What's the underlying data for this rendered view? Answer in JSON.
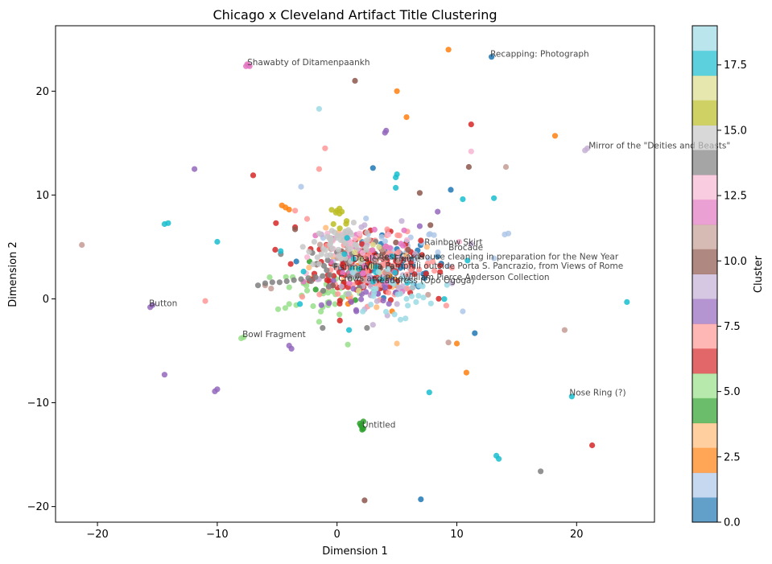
{
  "chart_data": {
    "type": "scatter",
    "title": "Chicago x Cleveland Artifact Title Clustering",
    "xlabel": "Dimension 1",
    "ylabel": "Dimension 2",
    "xlim": [
      -23.5,
      26.5
    ],
    "ylim": [
      -21.5,
      26.3
    ],
    "xticks": [
      -20,
      -10,
      0,
      10,
      20
    ],
    "yticks": [
      -20,
      -10,
      0,
      10,
      20
    ],
    "grid": false,
    "colorbar": {
      "label": "Cluster",
      "range": [
        0,
        19
      ],
      "ticks": [
        0.0,
        2.5,
        5.0,
        7.5,
        10.0,
        12.5,
        15.0,
        17.5
      ],
      "tick_labels": [
        "0.0",
        "2.5",
        "5.0",
        "7.5",
        "10.0",
        "12.5",
        "15.0",
        "17.5"
      ],
      "colors": [
        "#1f77b4",
        "#aec7e8",
        "#ff7f0e",
        "#ffbb78",
        "#2ca02c",
        "#98df8a",
        "#d62728",
        "#ff9896",
        "#9467bd",
        "#c5b0d5",
        "#8c564b",
        "#c49c94",
        "#e377c2",
        "#f7b6d2",
        "#7f7f7f",
        "#c7c7c7",
        "#bcbd22",
        "#dbdb8d",
        "#17becf",
        "#9edae5"
      ]
    },
    "annotations": [
      {
        "text": "Shawabty of Ditamenpaankh",
        "x": -7.5,
        "y": 22.5
      },
      {
        "text": "Recapping: Photograph",
        "x": 12.8,
        "y": 23.3
      },
      {
        "text": "Mirror of the \"Deities and Beasts\"",
        "x": 21.0,
        "y": 14.5
      },
      {
        "text": "Rainbow Skirt",
        "x": 7.3,
        "y": 5.2
      },
      {
        "text": "Brocade",
        "x": 9.3,
        "y": 4.7
      },
      {
        "text": "Chest Cards",
        "x": 3.0,
        "y": 3.8
      },
      {
        "text": "Dealers",
        "x": 1.3,
        "y": 3.6
      },
      {
        "text": "Figure",
        "x": 4.8,
        "y": 3.6
      },
      {
        "text": "House cleaning in preparation for the New Year",
        "x": 6.8,
        "y": 3.8
      },
      {
        "text": "Fishman",
        "x": -0.3,
        "y": 2.8
      },
      {
        "text": "Villa Pamphili outside Porta S. Pancrazio, from Views of Rome",
        "x": 2.3,
        "y": 2.9
      },
      {
        "text": "Crows and Pine",
        "x": 0.1,
        "y": 1.7
      },
      {
        "text": "William Pierce Anderson Collection",
        "x": 5.5,
        "y": 1.8
      },
      {
        "text": "Headdress (Opo Ogoga)",
        "x": 3.0,
        "y": 1.5
      },
      {
        "text": "Button",
        "x": -15.7,
        "y": -0.7
      },
      {
        "text": "Bowl Fragment",
        "x": -7.9,
        "y": -3.7
      },
      {
        "text": "Nose Ring (?)",
        "x": 19.4,
        "y": -9.3
      },
      {
        "text": "Untitled",
        "x": 2.1,
        "y": -12.4
      }
    ],
    "series": [
      {
        "cluster": 0,
        "points": [
          [
            12.9,
            23.3
          ],
          [
            3.0,
            12.6
          ],
          [
            9.5,
            10.5
          ],
          [
            11.5,
            -3.3
          ],
          [
            7.0,
            -19.3
          ],
          [
            5.0,
            4.8
          ],
          [
            6.2,
            3.8
          ],
          [
            7.3,
            2.0
          ],
          [
            6.4,
            1.4
          ],
          [
            4.0,
            4.6
          ],
          [
            1.9,
            4.2
          ],
          [
            8.7,
            3.4
          ],
          [
            5.8,
            5.3
          ],
          [
            3.3,
            2.8
          ],
          [
            -3.4,
            3.6
          ],
          [
            4.9,
            0.6
          ],
          [
            7.2,
            2.4
          ],
          [
            8.4,
            4.1
          ]
        ],
        "n_random": 40,
        "center": [
          4.5,
          3.5
        ],
        "spread": [
          2.0,
          1.3
        ]
      },
      {
        "cluster": 1,
        "points": [
          [
            14.3,
            6.3
          ],
          [
            14.0,
            6.2
          ],
          [
            10.5,
            -1.2
          ],
          [
            13.1,
            3.9
          ],
          [
            -3.0,
            10.8
          ],
          [
            7.1,
            5.4
          ],
          [
            5.9,
            5.1
          ],
          [
            4.2,
            2.3
          ]
        ],
        "n_random": 40,
        "center": [
          4.0,
          4.0
        ],
        "spread": [
          2.5,
          1.5
        ]
      },
      {
        "cluster": 2,
        "points": [
          [
            9.3,
            24.0
          ],
          [
            5.0,
            20.0
          ],
          [
            5.8,
            17.5
          ],
          [
            18.2,
            15.7
          ],
          [
            -4.6,
            9.0
          ],
          [
            -4.3,
            8.8
          ],
          [
            -4.0,
            8.6
          ],
          [
            10.8,
            -7.1
          ],
          [
            10.0,
            -4.3
          ],
          [
            4.6,
            -1.2
          ],
          [
            3.2,
            3.8
          ]
        ],
        "n_random": 8,
        "center": [
          2.0,
          2.0
        ],
        "spread": [
          2.5,
          2.0
        ]
      },
      {
        "cluster": 3,
        "points": [
          [
            5.0,
            -4.3
          ],
          [
            7.5,
            5.0
          ],
          [
            3.3,
            -0.8
          ],
          [
            1.3,
            5.3
          ],
          [
            -2.1,
            2.0
          ]
        ],
        "n_random": 12,
        "center": [
          2.0,
          2.5
        ],
        "spread": [
          2.5,
          2.0
        ]
      },
      {
        "cluster": 4,
        "points": [
          [
            2.1,
            -12.4
          ],
          [
            2.1,
            -12.6
          ],
          [
            2.0,
            -12.2
          ],
          [
            2.2,
            -12.5
          ],
          [
            1.9,
            -12.0
          ],
          [
            2.2,
            -11.8
          ],
          [
            -2.3,
            3.6
          ],
          [
            1.2,
            2.6
          ]
        ],
        "n_random": 6,
        "center": [
          0.5,
          2.0
        ],
        "spread": [
          2.0,
          1.5
        ]
      },
      {
        "cluster": 5,
        "points": [
          [
            -8.0,
            -3.8
          ],
          [
            -7.8,
            -3.7
          ],
          [
            -1.5,
            -2.2
          ],
          [
            0.9,
            -4.4
          ],
          [
            -4.0,
            -0.5
          ],
          [
            -3.4,
            -0.6
          ],
          [
            -2.5,
            0.8
          ],
          [
            -3.7,
            2.1
          ],
          [
            -2.8,
            1.5
          ],
          [
            1.0,
            0.5
          ],
          [
            -1.2,
            -0.8
          ],
          [
            0.2,
            -1.5
          ]
        ],
        "n_random": 30,
        "center": [
          -1.5,
          0.8
        ],
        "spread": [
          1.8,
          1.2
        ]
      },
      {
        "cluster": 6,
        "points": [
          [
            11.2,
            16.8
          ],
          [
            -7.0,
            11.9
          ],
          [
            -5.1,
            7.3
          ],
          [
            -3.5,
            6.9
          ],
          [
            21.3,
            -14.1
          ],
          [
            -2.2,
            4.8
          ],
          [
            8.6,
            3.2
          ],
          [
            2.8,
            6.6
          ]
        ],
        "n_random": 130,
        "center": [
          2.5,
          3.0
        ],
        "spread": [
          2.2,
          1.5
        ]
      },
      {
        "cluster": 7,
        "points": [
          [
            -11.0,
            -0.2
          ],
          [
            -1.0,
            14.5
          ],
          [
            -1.5,
            12.5
          ],
          [
            -3.5,
            8.5
          ],
          [
            -2.5,
            7.7
          ],
          [
            -2.9,
            0.2
          ],
          [
            -0.7,
            1.1
          ],
          [
            5.2,
            6.1
          ],
          [
            9.6,
            3.0
          ]
        ],
        "n_random": 70,
        "center": [
          3.5,
          3.2
        ],
        "spread": [
          2.5,
          1.5
        ]
      },
      {
        "cluster": 8,
        "points": [
          [
            -15.6,
            -0.8
          ],
          [
            -15.4,
            -0.6
          ],
          [
            -14.4,
            -7.3
          ],
          [
            -10.2,
            -8.9
          ],
          [
            -10.0,
            -8.7
          ],
          [
            -11.9,
            12.5
          ],
          [
            4.1,
            16.2
          ],
          [
            4.0,
            16.0
          ],
          [
            8.4,
            8.4
          ],
          [
            -4.0,
            -4.5
          ],
          [
            -3.8,
            -4.8
          ],
          [
            -1.3,
            -0.6
          ],
          [
            6.9,
            7.0
          ]
        ],
        "n_random": 20,
        "center": [
          2.5,
          0.5
        ],
        "spread": [
          2.0,
          1.5
        ]
      },
      {
        "cluster": 9,
        "points": [
          [
            20.7,
            14.3
          ],
          [
            20.9,
            14.5
          ],
          [
            2.3,
            7.1
          ],
          [
            1.1,
            6.4
          ],
          [
            3.0,
            -2.5
          ],
          [
            4.2,
            -1.6
          ],
          [
            -1.3,
            6.2
          ],
          [
            9.6,
            1.5
          ],
          [
            5.4,
            7.5
          ],
          [
            11.2,
            5.3
          ],
          [
            2.3,
            -1.0
          ],
          [
            -0.5,
            1.3
          ]
        ],
        "n_random": 30,
        "center": [
          3.0,
          2.0
        ],
        "spread": [
          2.2,
          1.5
        ]
      },
      {
        "cluster": 10,
        "points": [
          [
            1.5,
            21.0
          ],
          [
            11.0,
            12.7
          ],
          [
            6.9,
            10.2
          ],
          [
            2.3,
            -19.4
          ],
          [
            -3.5,
            6.7
          ],
          [
            -1.7,
            3.3
          ],
          [
            7.8,
            7.1
          ],
          [
            3.7,
            4.8
          ]
        ],
        "n_random": 15,
        "center": [
          2.0,
          3.5
        ],
        "spread": [
          2.5,
          1.5
        ]
      },
      {
        "cluster": 11,
        "points": [
          [
            -21.3,
            5.2
          ],
          [
            14.1,
            12.7
          ],
          [
            19.0,
            -3.0
          ],
          [
            9.3,
            -4.2
          ],
          [
            -5.5,
            1.0
          ],
          [
            -6.0,
            1.3
          ],
          [
            -0.5,
            4.8
          ],
          [
            7.6,
            0.4
          ]
        ],
        "n_random": 12,
        "center": [
          2.0,
          3.0
        ],
        "spread": [
          2.5,
          1.5
        ]
      },
      {
        "cluster": 12,
        "points": [
          [
            -7.6,
            22.4
          ],
          [
            -7.5,
            22.6
          ],
          [
            -7.4,
            22.5
          ],
          [
            -7.3,
            22.4
          ],
          [
            -1.8,
            6.1
          ],
          [
            -0.3,
            5.8
          ],
          [
            5.6,
            6.6
          ]
        ],
        "n_random": 25,
        "center": [
          2.5,
          3.0
        ],
        "spread": [
          2.0,
          1.5
        ]
      },
      {
        "cluster": 13,
        "points": [
          [
            11.2,
            14.2
          ],
          [
            -0.8,
            6.3
          ],
          [
            0.8,
            6.0
          ],
          [
            1.5,
            5.8
          ],
          [
            4.3,
            6.2
          ],
          [
            10.2,
            5.5
          ]
        ],
        "n_random": 15,
        "center": [
          1.5,
          5.0
        ],
        "spread": [
          1.8,
          1.0
        ]
      },
      {
        "cluster": 14,
        "points": [
          [
            17.0,
            -16.6
          ],
          [
            -6.6,
            1.3
          ],
          [
            -6.0,
            1.5
          ],
          [
            -5.4,
            1.6
          ],
          [
            -4.8,
            1.6
          ],
          [
            -4.2,
            1.7
          ],
          [
            -3.6,
            1.8
          ],
          [
            -3.0,
            1.9
          ],
          [
            -2.4,
            2.0
          ],
          [
            -1.8,
            2.1
          ],
          [
            -1.2,
            2.2
          ],
          [
            -0.6,
            2.3
          ],
          [
            -1.2,
            -2.8
          ],
          [
            2.5,
            -2.8
          ],
          [
            0.0,
            4.5
          ]
        ],
        "n_random": 20,
        "center": [
          1.0,
          3.0
        ],
        "spread": [
          2.0,
          1.3
        ]
      },
      {
        "cluster": 15,
        "points": [
          [
            -0.6,
            5.2
          ],
          [
            -1.3,
            4.3
          ],
          [
            0.4,
            6.1
          ],
          [
            1.7,
            4.8
          ],
          [
            -0.8,
            6.0
          ],
          [
            -0.2,
            6.4
          ],
          [
            -1.9,
            5.5
          ],
          [
            0.7,
            5.9
          ],
          [
            -0.5,
            5.6
          ],
          [
            -1.5,
            6.3
          ]
        ],
        "n_random": 45,
        "center": [
          0.5,
          5.2
        ],
        "spread": [
          1.5,
          0.9
        ]
      },
      {
        "cluster": 16,
        "points": [
          [
            0.0,
            8.5
          ],
          [
            0.2,
            8.7
          ],
          [
            0.4,
            8.4
          ],
          [
            -0.1,
            8.3
          ],
          [
            0.2,
            8.2
          ],
          [
            -0.3,
            7.2
          ],
          [
            0.8,
            7.5
          ]
        ],
        "n_random": 3,
        "center": [
          0.2,
          8.0
        ],
        "spread": [
          0.5,
          0.5
        ]
      },
      {
        "cluster": 17,
        "points": [
          [
            2.0,
            3.8
          ],
          [
            3.5,
            5.0
          ],
          [
            2.9,
            3.1
          ]
        ],
        "n_random": 5,
        "center": [
          2.5,
          4.0
        ],
        "spread": [
          1.2,
          0.8
        ]
      },
      {
        "cluster": 18,
        "points": [
          [
            -14.4,
            7.2
          ],
          [
            -14.1,
            7.3
          ],
          [
            -10.0,
            5.5
          ],
          [
            5.0,
            12.0
          ],
          [
            4.9,
            11.7
          ],
          [
            4.9,
            10.7
          ],
          [
            13.1,
            9.7
          ],
          [
            10.5,
            9.6
          ],
          [
            24.2,
            -0.3
          ],
          [
            19.6,
            -9.4
          ],
          [
            7.7,
            -9.0
          ],
          [
            13.3,
            -15.1
          ],
          [
            13.5,
            -15.4
          ],
          [
            -4.7,
            4.6
          ],
          [
            -3.1,
            -0.5
          ],
          [
            1.0,
            -3.0
          ]
        ],
        "n_random": 15,
        "center": [
          3.0,
          2.5
        ],
        "spread": [
          2.5,
          1.5
        ]
      },
      {
        "cluster": 19,
        "points": [
          [
            -1.5,
            18.3
          ],
          [
            5.3,
            0.5
          ],
          [
            6.6,
            -0.3
          ],
          [
            5.8,
            0.0
          ],
          [
            4.8,
            -1.5
          ],
          [
            5.3,
            -2.0
          ],
          [
            6.3,
            1.1
          ],
          [
            6.8,
            0.3
          ]
        ],
        "n_random": 25,
        "center": [
          4.5,
          0.8
        ],
        "spread": [
          2.0,
          1.2
        ]
      }
    ]
  }
}
